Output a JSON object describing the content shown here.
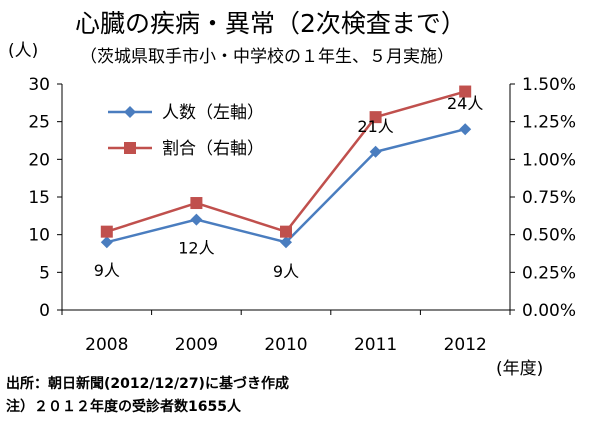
{
  "chart_data": {
    "type": "line",
    "title": "心臓の疾病・異常（2次検査まで）",
    "subtitle": "（茨城県取手市小・中学校の１年生、５月実施）",
    "categories": [
      "2008",
      "2009",
      "2010",
      "2011",
      "2012"
    ],
    "x_unit": "(年度)",
    "y_left": {
      "unit": "(人)",
      "range": [
        0,
        30
      ],
      "ticks": [
        "0",
        "5",
        "10",
        "15",
        "20",
        "25",
        "30"
      ]
    },
    "y_right": {
      "range": [
        0,
        1.5
      ],
      "ticks": [
        "0.00%",
        "0.25%",
        "0.50%",
        "0.75%",
        "1.00%",
        "1.25%",
        "1.50%"
      ]
    },
    "grid": false,
    "legend_position": "top-left",
    "series": [
      {
        "name": "人数（左軸）",
        "axis": "left",
        "color": "#4a7dbf",
        "marker": "diamond",
        "values": [
          9,
          12,
          9,
          21,
          24
        ],
        "data_labels": [
          "9人",
          "12人",
          "9人",
          "21人",
          "24人"
        ]
      },
      {
        "name": "割合（右軸）",
        "axis": "right",
        "color": "#c0504d",
        "marker": "square",
        "values": [
          0.52,
          0.71,
          0.52,
          1.28,
          1.45
        ]
      }
    ],
    "notes": [
      "出所：朝日新聞(2012/12/27)に基づき作成",
      "注）２０１２年度の受診者数1655人"
    ]
  }
}
